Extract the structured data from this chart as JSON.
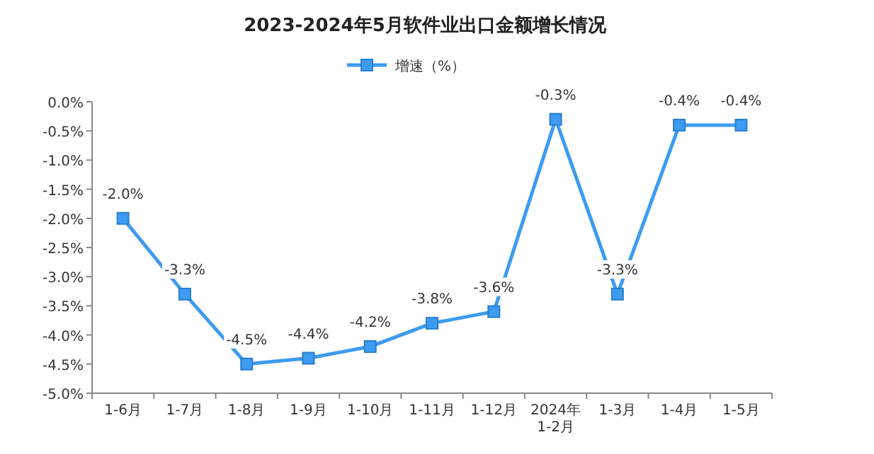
{
  "chart_data": {
    "type": "line",
    "title": "2023-2024年5月软件业出口金额增长情况",
    "categories": [
      "1-6月",
      "1-7月",
      "1-8月",
      "1-9月",
      "1-10月",
      "1-11月",
      "1-12月",
      "2024年\n1-2月",
      "1-3月",
      "1-4月",
      "1-5月"
    ],
    "series": [
      {
        "name": "增速（%）",
        "color": "#3d9bf0",
        "values": [
          -2.0,
          -3.3,
          -4.5,
          -4.4,
          -4.2,
          -3.8,
          -3.6,
          -0.3,
          -3.3,
          -0.4,
          -0.4
        ],
        "value_labels": [
          "-2.0%",
          "-3.3%",
          "-4.5%",
          "-4.4%",
          "-4.2%",
          "-3.8%",
          "-3.6%",
          "-0.3%",
          "-3.3%",
          "-0.4%",
          "-0.4%"
        ]
      }
    ],
    "ylim": [
      -5.0,
      0.0
    ],
    "yticks": [
      {
        "value": 0.0,
        "label": "0.0%"
      },
      {
        "value": -0.5,
        "label": "-0.5%"
      },
      {
        "value": -1.0,
        "label": "-1.0%"
      },
      {
        "value": -1.5,
        "label": "-1.5%"
      },
      {
        "value": -2.0,
        "label": "-2.0%"
      },
      {
        "value": -2.5,
        "label": "-2.5%"
      },
      {
        "value": -3.0,
        "label": "-3.0%"
      },
      {
        "value": -3.5,
        "label": "-3.5%"
      },
      {
        "value": -4.0,
        "label": "-4.0%"
      },
      {
        "value": -4.5,
        "label": "-4.5%"
      },
      {
        "value": -5.0,
        "label": "-5.0%"
      }
    ],
    "legend": "top",
    "marker": "square",
    "line_style": "solid",
    "grid": false
  }
}
